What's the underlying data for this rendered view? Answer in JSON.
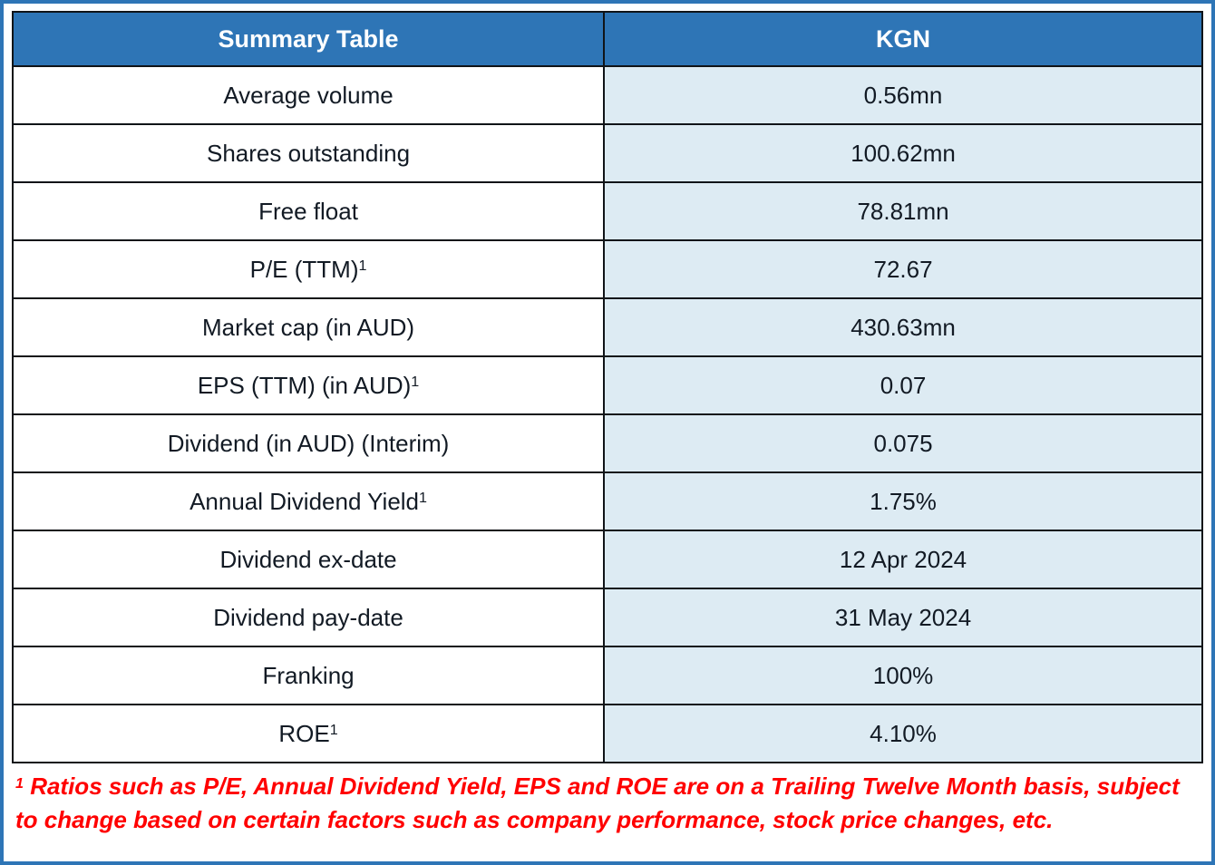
{
  "page": {
    "outer_border_color": "#2E75B6",
    "background_color": "#FFFFFF"
  },
  "table": {
    "header": {
      "label": "Summary Table",
      "value": "KGN"
    },
    "rows": [
      {
        "label": "Average volume",
        "sup": "",
        "value": "0.56mn"
      },
      {
        "label": "Shares outstanding",
        "sup": "",
        "value": "100.62mn"
      },
      {
        "label": "Free float",
        "sup": "",
        "value": "78.81mn"
      },
      {
        "label": "P/E (TTM)",
        "sup": "1",
        "value": "72.67"
      },
      {
        "label": "Market cap (in AUD)",
        "sup": "",
        "value": "430.63mn"
      },
      {
        "label": "EPS (TTM) (in AUD)",
        "sup": "1",
        "value": "0.07"
      },
      {
        "label": "Dividend (in AUD) (Interim)",
        "sup": "",
        "value": "0.075"
      },
      {
        "label": "Annual Dividend Yield",
        "sup": "1",
        "value": "1.75%"
      },
      {
        "label": "Dividend ex-date",
        "sup": "",
        "value": "12 Apr 2024"
      },
      {
        "label": "Dividend pay-date",
        "sup": "",
        "value": "31 May 2024"
      },
      {
        "label": "Franking",
        "sup": "",
        "value": "100%"
      },
      {
        "label": "ROE",
        "sup": "1",
        "value": "4.10%"
      }
    ],
    "colors": {
      "header_bg": "#2E75B6",
      "header_text": "#FFFFFF",
      "value_cell_bg": "#DDEBF3",
      "label_cell_bg": "#FFFFFF",
      "grid": "#101418",
      "cell_text": "#121A24",
      "footnote_text": "#FF0000"
    }
  },
  "footnote": {
    "sup": "1",
    "text": " Ratios such as P/E, Annual Dividend Yield, EPS and ROE are on a Trailing Twelve Month basis, subject to change based on certain factors such as company performance, stock price changes, etc."
  }
}
